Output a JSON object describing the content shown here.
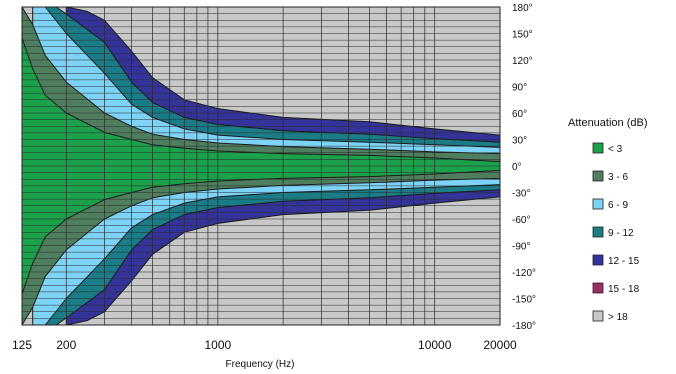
{
  "chart_data": {
    "type": "heatmap",
    "title": "",
    "xlabel": "Frequency (Hz)",
    "ylabel": "",
    "x_scale": "log",
    "xlim": [
      125,
      20000
    ],
    "ylim": [
      -180,
      180
    ],
    "x_ticks": [
      {
        "value": 125,
        "label": "125"
      },
      {
        "value": 200,
        "label": "200"
      },
      {
        "value": 1000,
        "label": "1000"
      },
      {
        "value": 10000,
        "label": "10000"
      },
      {
        "value": 20000,
        "label": "20000"
      }
    ],
    "y_ticks": [
      {
        "value": 180,
        "label": "180°"
      },
      {
        "value": 150,
        "label": "150°"
      },
      {
        "value": 120,
        "label": "120°"
      },
      {
        "value": 90,
        "label": "90°"
      },
      {
        "value": 60,
        "label": "60°"
      },
      {
        "value": 30,
        "label": "30°"
      },
      {
        "value": 0,
        "label": "0°"
      },
      {
        "value": -30,
        "label": "-30°"
      },
      {
        "value": -60,
        "label": "-60°"
      },
      {
        "value": -90,
        "label": "-90°"
      },
      {
        "value": -120,
        "label": "-120°"
      },
      {
        "value": -150,
        "label": "-150°"
      },
      {
        "value": -180,
        "label": "-180°"
      }
    ],
    "grid": true,
    "legend": {
      "title": "Attenuation (dB)",
      "placement": "right",
      "entries": [
        {
          "label": "< 3",
          "color": "#1aa14a"
        },
        {
          "label": "3 - 6",
          "color": "#4e7e5e"
        },
        {
          "label": "6 - 9",
          "color": "#7dd3f5"
        },
        {
          "label": "9 - 12",
          "color": "#1a7c86"
        },
        {
          "label": "12 - 15",
          "color": "#34339a"
        },
        {
          "label": "15 - 18",
          "color": "#9b2e66"
        },
        {
          "label": "> 18",
          "color": "#c8c8c8"
        }
      ]
    },
    "contour_boundaries": [
      {
        "band": "< 3",
        "freq": [
          125,
          140,
          160,
          200,
          300,
          400,
          500,
          700,
          1000,
          2000,
          5000,
          10000,
          20000
        ],
        "angle": [
          145,
          110,
          80,
          60,
          38,
          30,
          24,
          20,
          17,
          14,
          12,
          9,
          5
        ]
      },
      {
        "band": "3 - 6",
        "freq": [
          125,
          140,
          160,
          200,
          300,
          400,
          500,
          700,
          1000,
          2000,
          5000,
          10000,
          20000
        ],
        "angle": [
          180,
          160,
          125,
          95,
          60,
          45,
          36,
          30,
          26,
          22,
          19,
          16,
          14
        ]
      },
      {
        "band": "6 - 9",
        "freq": [
          140,
          160,
          200,
          300,
          400,
          500,
          700,
          1000,
          2000,
          5000,
          10000,
          20000
        ],
        "angle": [
          180,
          180,
          150,
          105,
          70,
          55,
          42,
          35,
          30,
          27,
          24,
          21
        ]
      },
      {
        "band": "9 - 12",
        "freq": [
          150,
          180,
          200,
          300,
          400,
          500,
          700,
          1000,
          2000,
          5000,
          10000,
          20000
        ],
        "angle": [
          180,
          180,
          172,
          140,
          95,
          72,
          55,
          47,
          40,
          36,
          31,
          27
        ]
      },
      {
        "band": "12 - 15",
        "freq": [
          200,
          250,
          300,
          400,
          500,
          700,
          1000,
          2000,
          5000,
          10000,
          20000
        ],
        "angle": [
          180,
          175,
          165,
          130,
          100,
          75,
          65,
          55,
          50,
          42,
          35
        ]
      }
    ]
  }
}
